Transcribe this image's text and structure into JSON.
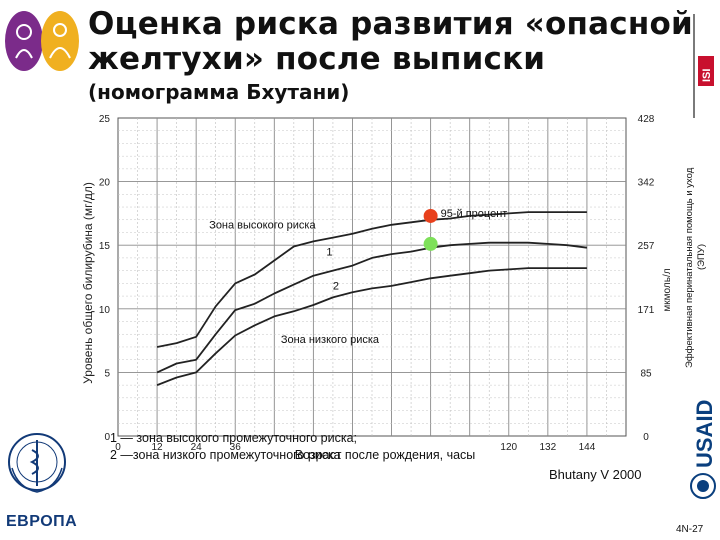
{
  "title": {
    "line1": "Оценка риска развития «опасной",
    "line2": "желтухи» после выписки",
    "line3": "(номограмма Бхутани)"
  },
  "side_label": {
    "line1": "Эффективная перинатальная помощь и уход",
    "line2": "(ЭПУ)"
  },
  "footer": {
    "line1": "1 — зона высокого промежуточного риска;",
    "line2": "2 —зона низкого промежуточного риска",
    "source": "Bhutany V 2000",
    "slide_number": "4N-27",
    "region": "ЕВРОПА"
  },
  "logos": {
    "usaid": "USAID",
    "isi": "ISI"
  },
  "colors": {
    "high_dot": "#e8401c",
    "mid_dot": "#7ee05a",
    "curve": "#222222",
    "grid": "#999999",
    "usaid_blue": "#0a3f7e",
    "isi_red": "#c8102e",
    "logo_purple": "#7b2b8a",
    "logo_gold": "#f0b020"
  },
  "icons": {
    "top_left": "mother-baby-logo",
    "bottom_left": "who-emblem",
    "right_top": "isi-logo",
    "right_bottom": "usaid-logo"
  },
  "chart_data": {
    "type": "line",
    "title": "",
    "xlabel": "Возраст после рождения, часы",
    "ylabel": "Уровень общего билирубина (мг/дл)",
    "ylabel_right": "мкмоль/л",
    "xlim": [
      0,
      156
    ],
    "ylim": [
      0,
      25
    ],
    "x_ticks": [
      0,
      12,
      24,
      36,
      48,
      60,
      72,
      84,
      96,
      108,
      120,
      132,
      144
    ],
    "x_tick_labels": [
      "0",
      "12",
      "24",
      "36",
      "",
      "",
      "",
      "",
      "",
      "",
      "120",
      "132",
      "144"
    ],
    "y_ticks": [
      0,
      5,
      10,
      15,
      20,
      25
    ],
    "y_tick_labels": [
      "0",
      "5",
      "10",
      "15",
      "20",
      "25"
    ],
    "y_right_ticks": [
      0,
      5,
      10,
      15,
      20,
      25
    ],
    "y_right_tick_labels": [
      "0",
      "85",
      "171",
      "257",
      "342",
      "428"
    ],
    "grid": true,
    "series": [
      {
        "name": "95-й процент",
        "x": [
          12,
          18,
          24,
          30,
          36,
          42,
          48,
          54,
          60,
          66,
          72,
          78,
          84,
          90,
          96,
          102,
          108,
          114,
          120,
          126,
          132,
          138,
          144
        ],
        "y": [
          7.0,
          7.3,
          7.8,
          10.2,
          12.0,
          12.7,
          13.8,
          14.9,
          15.3,
          15.6,
          15.9,
          16.3,
          16.6,
          16.8,
          17.0,
          17.1,
          17.3,
          17.4,
          17.5,
          17.6,
          17.6,
          17.6,
          17.6
        ]
      },
      {
        "name": "1",
        "x": [
          12,
          18,
          24,
          30,
          36,
          42,
          48,
          54,
          60,
          66,
          72,
          78,
          84,
          90,
          96,
          102,
          108,
          114,
          120,
          126,
          132,
          138,
          144
        ],
        "y": [
          5.0,
          5.7,
          6.0,
          8.0,
          9.9,
          10.4,
          11.2,
          11.9,
          12.6,
          13.0,
          13.4,
          14.0,
          14.3,
          14.5,
          14.8,
          15.0,
          15.1,
          15.2,
          15.2,
          15.2,
          15.1,
          15.0,
          14.8
        ]
      },
      {
        "name": "2",
        "x": [
          12,
          18,
          24,
          30,
          36,
          42,
          48,
          54,
          60,
          66,
          72,
          78,
          84,
          90,
          96,
          102,
          108,
          114,
          120,
          126,
          132,
          138,
          144
        ],
        "y": [
          4.0,
          4.6,
          5.0,
          6.5,
          7.9,
          8.7,
          9.4,
          9.8,
          10.3,
          10.9,
          11.3,
          11.6,
          11.8,
          12.1,
          12.4,
          12.6,
          12.8,
          13.0,
          13.1,
          13.2,
          13.2,
          13.2,
          13.2
        ]
      }
    ],
    "markers": [
      {
        "label": "95-й процент",
        "x": 96,
        "y": 17.3,
        "color": "#e8401c"
      },
      {
        "label": "",
        "x": 96,
        "y": 15.1,
        "color": "#7ee05a"
      }
    ],
    "annotations": [
      {
        "text": "Зона высокого риска",
        "x": 28,
        "y": 16.3
      },
      {
        "text": "Зона низкого риска",
        "x": 50,
        "y": 7.3
      },
      {
        "text": "1",
        "x": 64,
        "y": 14.2
      },
      {
        "text": "2",
        "x": 66,
        "y": 11.5
      }
    ]
  }
}
